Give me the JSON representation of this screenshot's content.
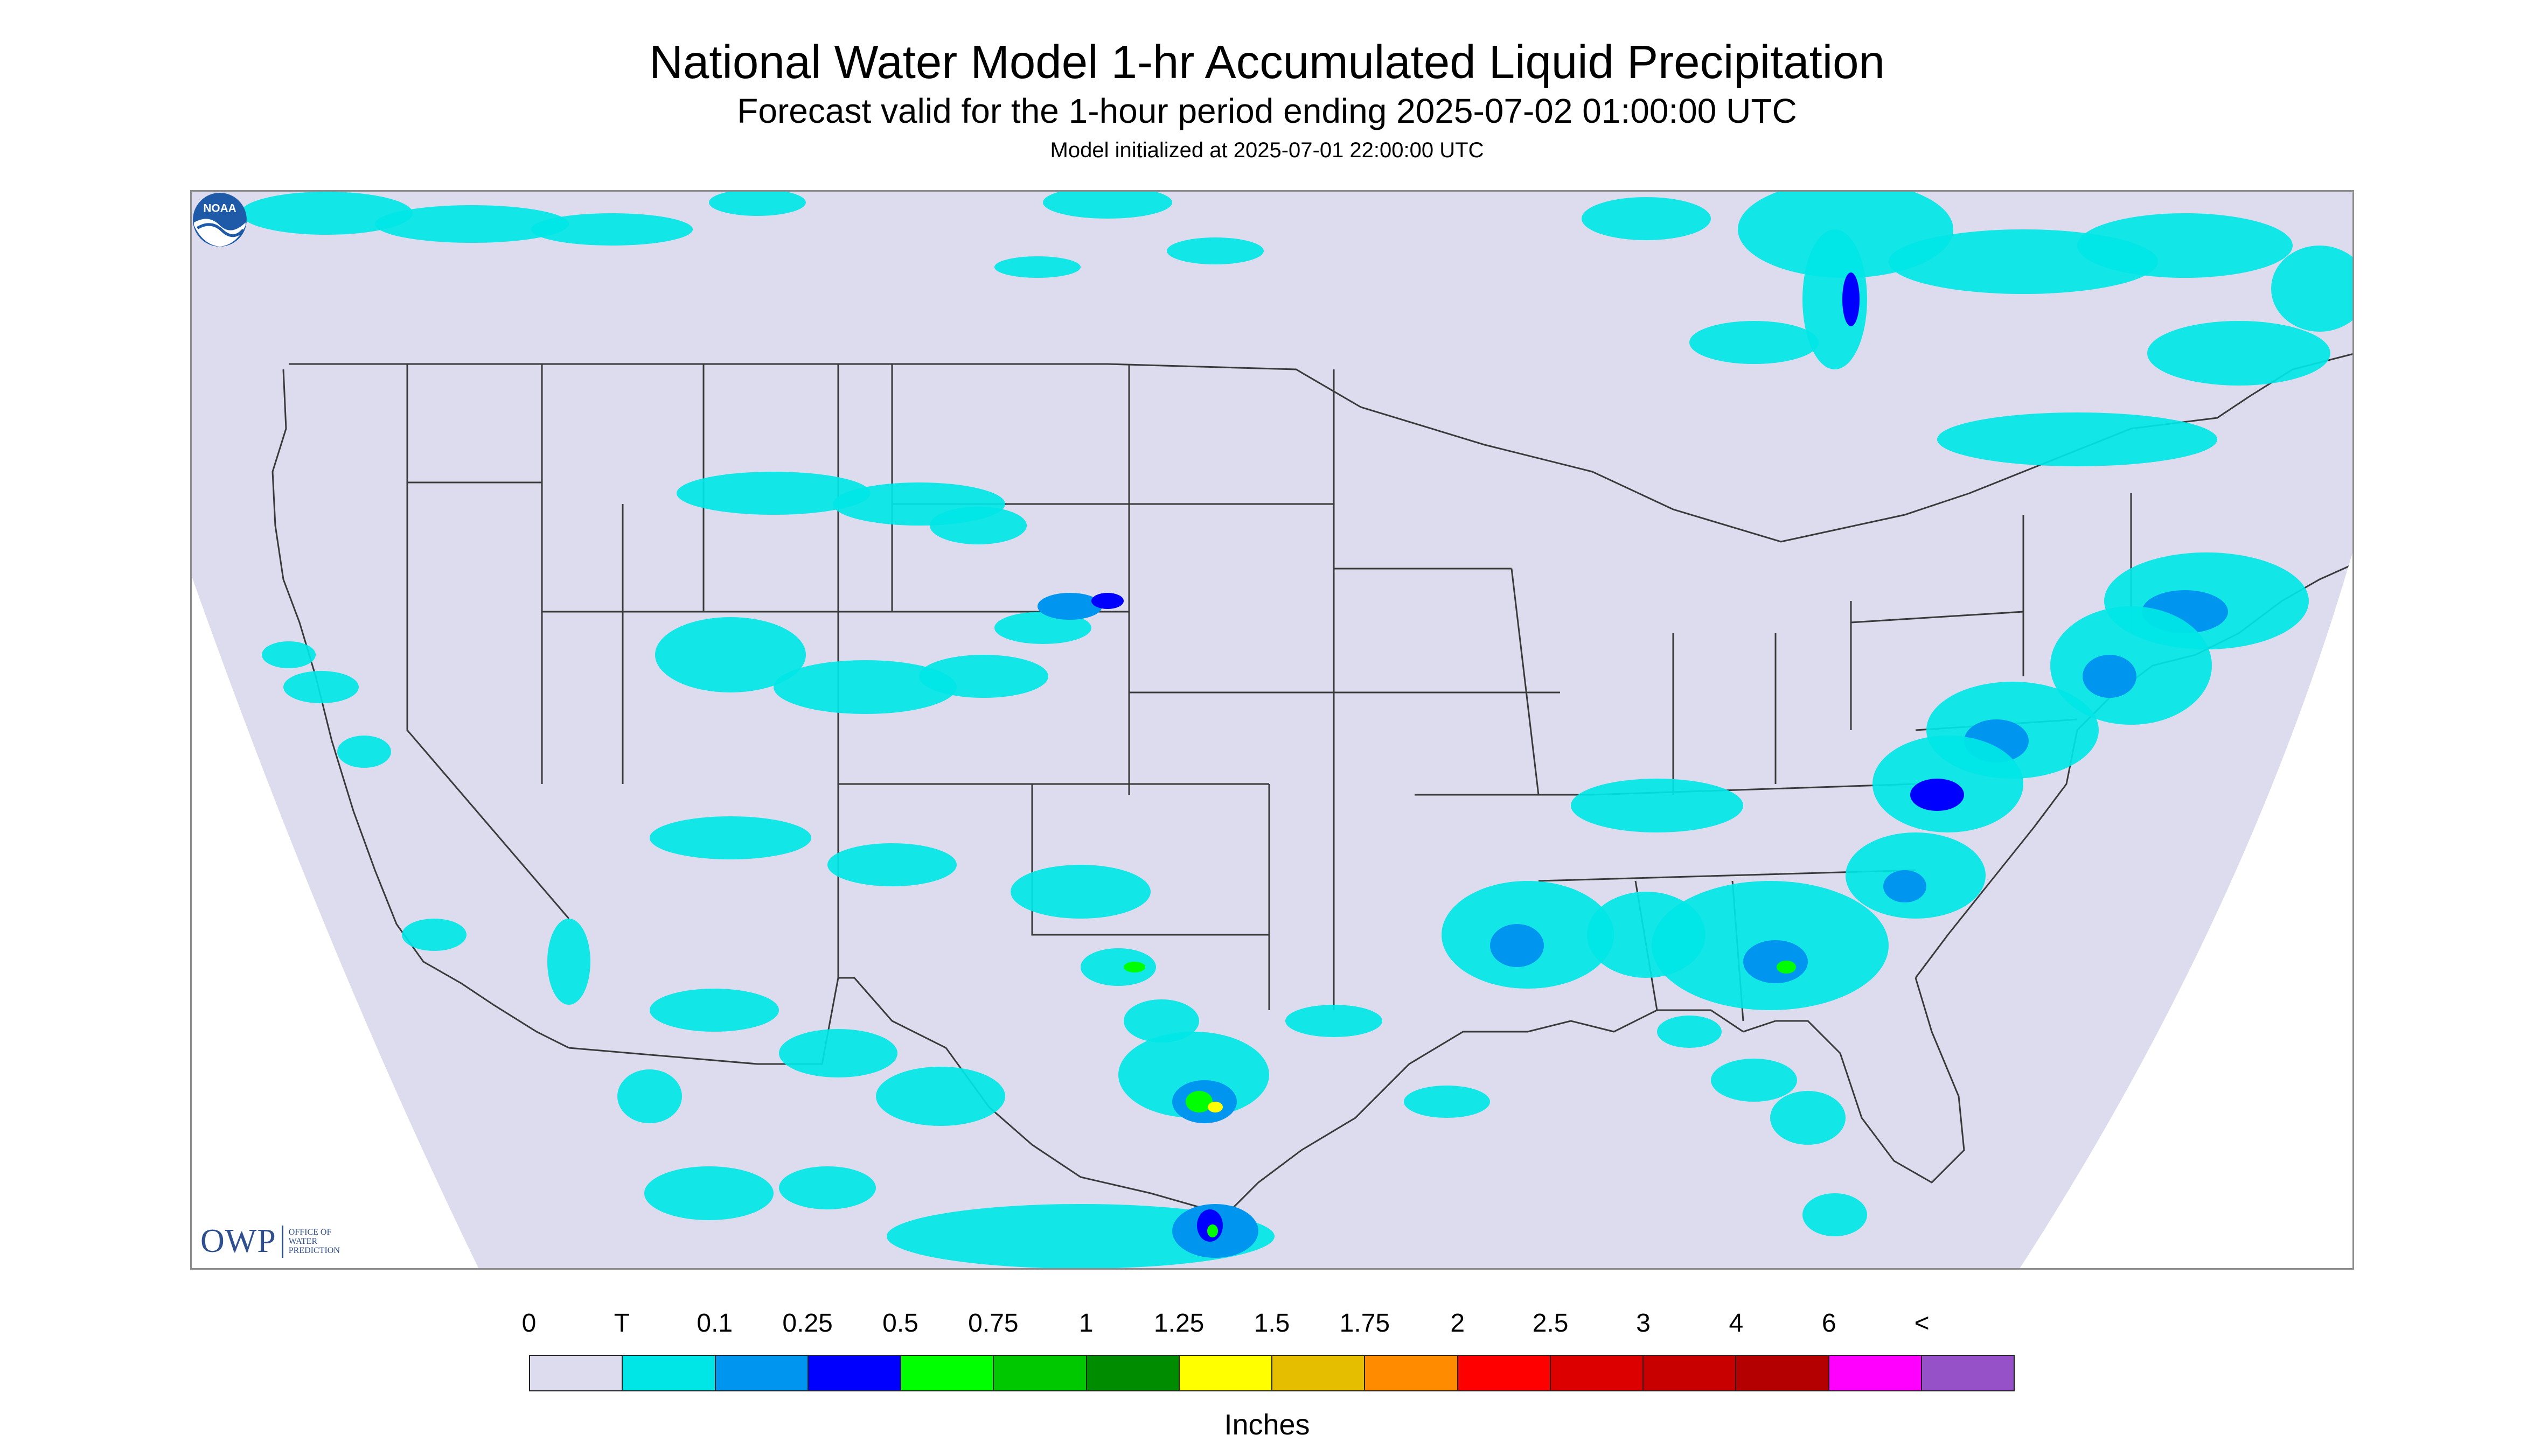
{
  "header": {
    "title": "National Water Model 1-hr Accumulated Liquid Precipitation",
    "subtitle": "Forecast valid for the 1-hour period ending 2025-07-02 01:00:00 UTC",
    "init": "Model initialized at 2025-07-01 22:00:00 UTC"
  },
  "map": {
    "projection_background": "#dcdcee",
    "outside_color": "#ffffff",
    "boundary_color": "#3a3a3a",
    "precip_areas": [
      {
        "region": "Northern Plains / Canada",
        "level": "T"
      },
      {
        "region": "Rocky Mountains / Four Corners",
        "level": "T"
      },
      {
        "region": "South Texas",
        "level": "0.5 - 1.5"
      },
      {
        "region": "Lower Mississippi Valley",
        "level": "T - 0.25"
      },
      {
        "region": "Southeast",
        "level": "0.1 - 1.5"
      },
      {
        "region": "Mid-Atlantic / Northeast",
        "level": "0.1 - 1.5"
      },
      {
        "region": "Great Lakes / Quebec",
        "level": "T - 0.5"
      },
      {
        "region": "Northern Mexico",
        "level": "T - 1"
      },
      {
        "region": "Florida",
        "level": "T - 0.5"
      }
    ]
  },
  "logos": {
    "owp_mark": "OWP",
    "owp_text": [
      "OFFICE OF",
      "WATER",
      "PREDICTION"
    ],
    "noaa": "NOAA"
  },
  "legend": {
    "tick_labels": [
      "0",
      "T",
      "0.1",
      "0.25",
      "0.5",
      "0.75",
      "1",
      "1.25",
      "1.5",
      "1.75",
      "2",
      "2.5",
      "3",
      "4",
      "6",
      "<"
    ],
    "colors": [
      "#dcdcee",
      "#00e6e6",
      "#0096f0",
      "#0000ff",
      "#00ff00",
      "#00c800",
      "#008c00",
      "#ffff00",
      "#e6be00",
      "#ff8c00",
      "#ff0000",
      "#dc0000",
      "#c80000",
      "#b40000",
      "#ff00ff",
      "#9650c8"
    ],
    "units": "Inches"
  }
}
